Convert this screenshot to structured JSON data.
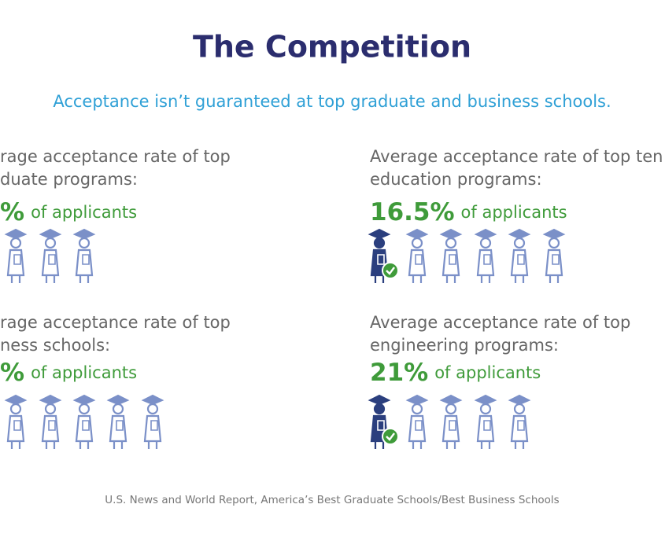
{
  "header": {
    "title": "The Competition",
    "subtitle": "Acceptance isn’t guaranteed at top graduate and business schools."
  },
  "panels": [
    {
      "heading": [
        "rage acceptance rate of top",
        "duate programs:"
      ],
      "stat": "%",
      "suffix": "of applicants"
    },
    {
      "heading": [
        "Average acceptance rate of top ten",
        "education programs:"
      ],
      "stat": "16.5%",
      "suffix": "of applicants"
    },
    {
      "heading": [
        "rage acceptance rate of top",
        "ness schools:"
      ],
      "stat": "%",
      "suffix": "of applicants"
    },
    {
      "heading": [
        "Average acceptance rate of top",
        "engineering programs:"
      ],
      "stat": "21%",
      "suffix": "of applicants"
    }
  ],
  "footer": {
    "source": "U.S. News and World Report, America’s Best Graduate Schools/Best Business Schools"
  }
}
